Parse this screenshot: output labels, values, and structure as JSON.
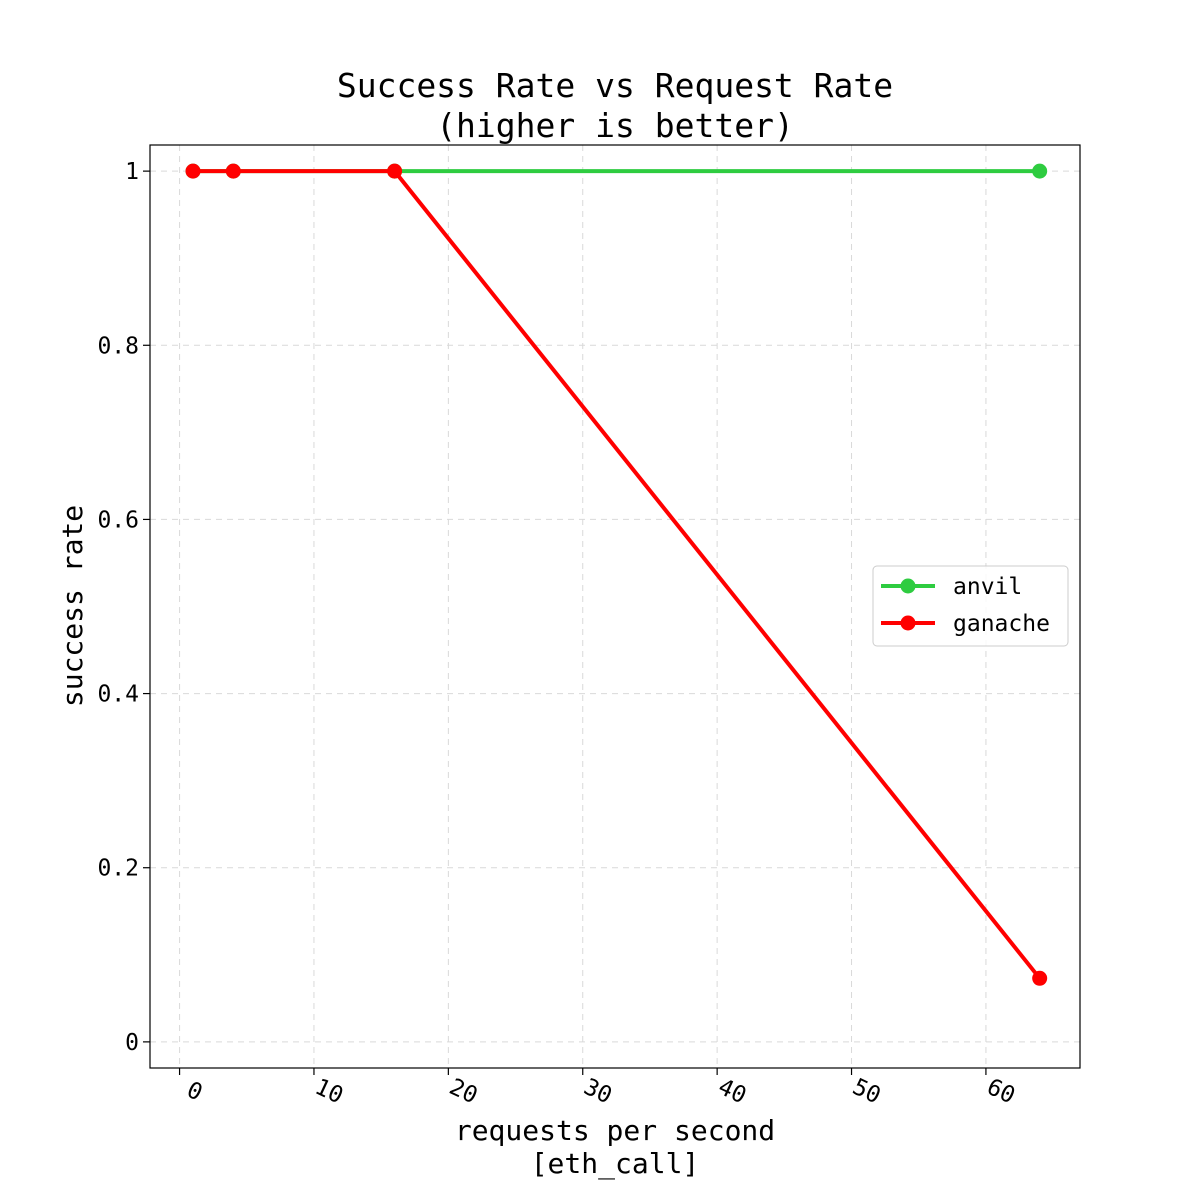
{
  "chart_data": {
    "type": "line",
    "title": [
      "Success Rate vs Request Rate",
      "(higher is better)"
    ],
    "xlabel": [
      "requests per second",
      "[eth_call]"
    ],
    "ylabel": "success rate",
    "xlim": [
      -2.2,
      67
    ],
    "ylim": [
      -0.03,
      1.03
    ],
    "xticks": [
      0,
      10,
      20,
      30,
      40,
      50,
      60
    ],
    "xtick_labels": [
      "0",
      "10",
      "20",
      "30",
      "40",
      "50",
      "60"
    ],
    "yticks": [
      0,
      0.2,
      0.4,
      0.6,
      0.8,
      1
    ],
    "ytick_labels": [
      "0",
      "0.2",
      "0.4",
      "0.6",
      "0.8",
      "1"
    ],
    "grid": true,
    "legend_position": "center-right",
    "series": [
      {
        "name": "anvil",
        "color": "#2ecc40",
        "x": [
          1,
          4,
          16,
          64
        ],
        "y": [
          1,
          1,
          1,
          1
        ]
      },
      {
        "name": "ganache",
        "color": "#ff0000",
        "x": [
          1,
          4,
          16,
          64
        ],
        "y": [
          1,
          1,
          1,
          0.073
        ]
      }
    ]
  }
}
